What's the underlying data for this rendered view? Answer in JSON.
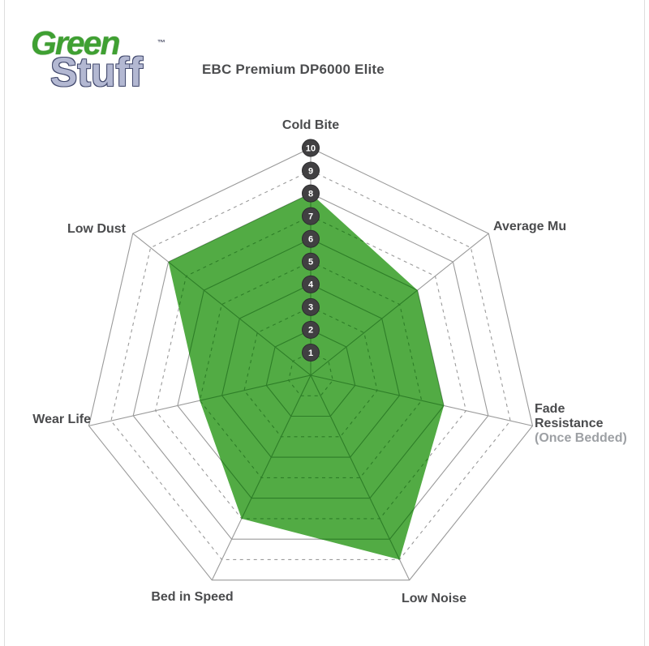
{
  "logo": {
    "green_text": "Green",
    "stuff_text": "Stuff",
    "tm": "™"
  },
  "header": {
    "title": "EBC Premium DP6000 Elite"
  },
  "chart_data": {
    "type": "radar",
    "title": "EBC Premium DP6000 Elite",
    "categories": [
      "Cold Bite",
      "Average Mu",
      "Fade Resistance (Once Bedded)",
      "Low Noise",
      "Bed in Speed",
      "Wear Life",
      "Low Dust"
    ],
    "series": [
      {
        "name": "EBC Premium DP6000 Elite",
        "values": [
          8,
          6,
          6,
          9,
          7,
          5,
          8
        ]
      }
    ],
    "scale": {
      "min": 1,
      "max": 10,
      "ticks": [
        10,
        9,
        8,
        7,
        6,
        5,
        4,
        3,
        2,
        1
      ]
    },
    "rings": 10,
    "grid": "on",
    "grid_style": "even rings solid, odd rings dashed",
    "colors": {
      "fill_green": "#4BA83C",
      "grid_gray": "#9a9a9a",
      "grid_inside_green": "#2e7e28",
      "tick_badge": "#414042",
      "tick_text": "#ffffff",
      "label_text": "#4a4b4d",
      "label_sub_text": "#9da0a4"
    }
  },
  "axis_labels": {
    "cold_bite": "Cold Bite",
    "average_mu": "Average Mu",
    "fade_line1": "Fade",
    "fade_line2": "Resistance",
    "fade_line3": "(Once Bedded)",
    "low_noise": "Low Noise",
    "bed_in_speed": "Bed in Speed",
    "wear_life": "Wear Life",
    "low_dust": "Low Dust"
  }
}
